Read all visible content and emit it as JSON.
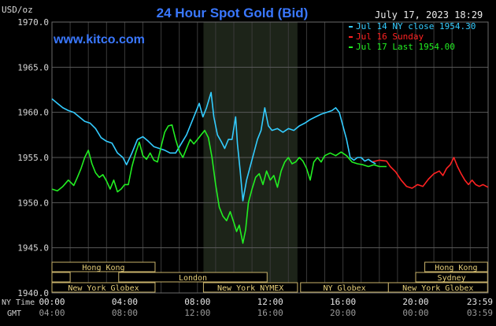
{
  "chart_data": {
    "type": "line",
    "title": "24 Hour Spot Gold (Bid)",
    "ylabel": "USD/oz",
    "date_label": "July 17, 2023 18:29",
    "watermark": "www.kitco.com",
    "ylim": [
      1940.0,
      1970.0
    ],
    "y_ticks": [
      "1970.0",
      "1965.0",
      "1960.0",
      "1955.0",
      "1950.0",
      "1945.0",
      "1940.0"
    ],
    "x_label_top": "NY Time",
    "x_label_bottom": "GMT",
    "x_ticks_ny": [
      "00:00",
      "04:00",
      "08:00",
      "12:00",
      "16:00",
      "20:00",
      "23:59"
    ],
    "x_ticks_gmt": [
      "04:00",
      "08:00",
      "12:00",
      "16:00",
      "20:00",
      "00:00",
      "03:59"
    ],
    "x_hours": [
      0,
      4,
      8,
      12,
      16,
      20,
      23.983
    ],
    "nymex_hours": [
      8.33,
      13.5
    ],
    "legend": [
      {
        "text": "Jul 14 NY close 1954.30",
        "color": "#33ccff"
      },
      {
        "text": "Jul 16 Sunday",
        "color": "#ff2222"
      },
      {
        "text": "Jul 17 Last 1954.00",
        "color": "#22ee22"
      }
    ],
    "sessions": [
      {
        "label": "Hong Kong",
        "start": 0,
        "end": 5.67,
        "row": 0
      },
      {
        "label": "Hong Kong",
        "start": 20.5,
        "end": 23.95,
        "row": 0
      },
      {
        "label": "London",
        "start": 0,
        "end": 1,
        "row": 1
      },
      {
        "label": "London",
        "start": 3.67,
        "end": 11.83,
        "row": 1
      },
      {
        "label": "Sydney",
        "start": 20,
        "end": 23.95,
        "row": 1
      },
      {
        "label": "New York Globex",
        "start": 0,
        "end": 5.67,
        "row": 2
      },
      {
        "label": "New York NYMEX",
        "start": 8.33,
        "end": 13.5,
        "row": 2
      },
      {
        "label": "NY Globex",
        "start": 13.67,
        "end": 18.5,
        "row": 2
      },
      {
        "label": "New York Globex",
        "start": 18.5,
        "end": 23.95,
        "row": 2
      }
    ],
    "series": [
      {
        "name": "Jul 14",
        "color": "#33ccff",
        "points": [
          [
            0.0,
            1961.5
          ],
          [
            0.3,
            1961.0
          ],
          [
            0.6,
            1960.5
          ],
          [
            0.9,
            1960.2
          ],
          [
            1.2,
            1960.0
          ],
          [
            1.5,
            1959.5
          ],
          [
            1.8,
            1959.0
          ],
          [
            2.1,
            1958.8
          ],
          [
            2.4,
            1958.2
          ],
          [
            2.7,
            1957.2
          ],
          [
            3.0,
            1956.8
          ],
          [
            3.3,
            1956.6
          ],
          [
            3.6,
            1955.5
          ],
          [
            3.9,
            1955.0
          ],
          [
            4.1,
            1954.2
          ],
          [
            4.4,
            1955.5
          ],
          [
            4.7,
            1957.0
          ],
          [
            5.0,
            1957.3
          ],
          [
            5.3,
            1956.8
          ],
          [
            5.6,
            1956.2
          ],
          [
            5.9,
            1956.0
          ],
          [
            6.2,
            1955.8
          ],
          [
            6.5,
            1955.5
          ],
          [
            6.8,
            1955.5
          ],
          [
            7.1,
            1956.5
          ],
          [
            7.4,
            1957.5
          ],
          [
            7.7,
            1959.0
          ],
          [
            7.9,
            1960.0
          ],
          [
            8.1,
            1961.0
          ],
          [
            8.3,
            1959.5
          ],
          [
            8.5,
            1960.5
          ],
          [
            8.75,
            1962.2
          ],
          [
            8.9,
            1959.5
          ],
          [
            9.1,
            1957.5
          ],
          [
            9.3,
            1956.8
          ],
          [
            9.5,
            1956.0
          ],
          [
            9.7,
            1957.0
          ],
          [
            9.9,
            1957.0
          ],
          [
            10.1,
            1959.5
          ],
          [
            10.2,
            1956.5
          ],
          [
            10.35,
            1953.5
          ],
          [
            10.5,
            1950.2
          ],
          [
            10.7,
            1952.5
          ],
          [
            10.9,
            1954.0
          ],
          [
            11.1,
            1955.5
          ],
          [
            11.3,
            1957.0
          ],
          [
            11.5,
            1958.0
          ],
          [
            11.7,
            1960.5
          ],
          [
            11.9,
            1958.5
          ],
          [
            12.1,
            1958.0
          ],
          [
            12.4,
            1958.2
          ],
          [
            12.7,
            1957.8
          ],
          [
            13.0,
            1958.2
          ],
          [
            13.3,
            1958.0
          ],
          [
            13.6,
            1958.5
          ],
          [
            13.9,
            1958.8
          ],
          [
            14.2,
            1959.2
          ],
          [
            14.5,
            1959.5
          ],
          [
            14.8,
            1959.8
          ],
          [
            15.1,
            1960.0
          ],
          [
            15.4,
            1960.2
          ],
          [
            15.6,
            1960.5
          ],
          [
            15.8,
            1960.0
          ],
          [
            16.0,
            1958.5
          ],
          [
            16.2,
            1957.0
          ],
          [
            16.4,
            1955.0
          ],
          [
            16.6,
            1954.7
          ],
          [
            16.8,
            1955.0
          ],
          [
            17.0,
            1955.0
          ],
          [
            17.2,
            1954.6
          ],
          [
            17.4,
            1954.8
          ],
          [
            17.6,
            1954.5
          ],
          [
            17.8,
            1954.3
          ]
        ]
      },
      {
        "name": "Jul 16",
        "color": "#ff2222",
        "points": [
          [
            17.6,
            1954.5
          ],
          [
            18.0,
            1954.7
          ],
          [
            18.4,
            1954.6
          ],
          [
            18.6,
            1954.0
          ],
          [
            18.9,
            1953.4
          ],
          [
            19.2,
            1952.5
          ],
          [
            19.5,
            1951.8
          ],
          [
            19.8,
            1951.6
          ],
          [
            20.1,
            1952.0
          ],
          [
            20.4,
            1951.8
          ],
          [
            20.7,
            1952.6
          ],
          [
            21.0,
            1953.2
          ],
          [
            21.3,
            1953.5
          ],
          [
            21.5,
            1953.0
          ],
          [
            21.7,
            1953.8
          ],
          [
            21.9,
            1954.2
          ],
          [
            22.1,
            1955.0
          ],
          [
            22.3,
            1954.0
          ],
          [
            22.5,
            1953.2
          ],
          [
            22.7,
            1952.5
          ],
          [
            22.9,
            1952.0
          ],
          [
            23.1,
            1952.5
          ],
          [
            23.3,
            1952.0
          ],
          [
            23.5,
            1951.8
          ],
          [
            23.7,
            1952.0
          ],
          [
            23.98,
            1951.7
          ]
        ]
      },
      {
        "name": "Jul 17",
        "color": "#22ee22",
        "points": [
          [
            0.0,
            1951.5
          ],
          [
            0.3,
            1951.3
          ],
          [
            0.6,
            1951.8
          ],
          [
            0.9,
            1952.5
          ],
          [
            1.2,
            1951.9
          ],
          [
            1.4,
            1952.8
          ],
          [
            1.6,
            1953.8
          ],
          [
            1.8,
            1955.0
          ],
          [
            2.0,
            1955.8
          ],
          [
            2.2,
            1954.3
          ],
          [
            2.4,
            1953.3
          ],
          [
            2.6,
            1952.8
          ],
          [
            2.8,
            1953.1
          ],
          [
            3.0,
            1952.4
          ],
          [
            3.2,
            1951.5
          ],
          [
            3.4,
            1952.5
          ],
          [
            3.6,
            1951.2
          ],
          [
            3.8,
            1951.5
          ],
          [
            4.0,
            1952.0
          ],
          [
            4.2,
            1952.0
          ],
          [
            4.4,
            1954.0
          ],
          [
            4.6,
            1955.5
          ],
          [
            4.8,
            1956.7
          ],
          [
            5.0,
            1955.2
          ],
          [
            5.2,
            1954.8
          ],
          [
            5.4,
            1955.5
          ],
          [
            5.6,
            1954.7
          ],
          [
            5.8,
            1954.5
          ],
          [
            6.0,
            1956.2
          ],
          [
            6.2,
            1957.8
          ],
          [
            6.4,
            1958.5
          ],
          [
            6.6,
            1958.6
          ],
          [
            6.8,
            1957.0
          ],
          [
            7.0,
            1955.7
          ],
          [
            7.2,
            1955.0
          ],
          [
            7.4,
            1956.0
          ],
          [
            7.6,
            1957.0
          ],
          [
            7.8,
            1956.5
          ],
          [
            8.0,
            1957.0
          ],
          [
            8.2,
            1957.5
          ],
          [
            8.4,
            1958.0
          ],
          [
            8.6,
            1957.2
          ],
          [
            8.8,
            1955.0
          ],
          [
            9.0,
            1952.0
          ],
          [
            9.2,
            1949.5
          ],
          [
            9.4,
            1948.5
          ],
          [
            9.6,
            1948.0
          ],
          [
            9.8,
            1949.0
          ],
          [
            10.0,
            1947.8
          ],
          [
            10.15,
            1946.8
          ],
          [
            10.3,
            1947.5
          ],
          [
            10.5,
            1945.5
          ],
          [
            10.65,
            1947.0
          ],
          [
            10.8,
            1950.0
          ],
          [
            11.0,
            1951.5
          ],
          [
            11.2,
            1952.8
          ],
          [
            11.4,
            1953.2
          ],
          [
            11.6,
            1952.0
          ],
          [
            11.8,
            1953.5
          ],
          [
            12.0,
            1952.5
          ],
          [
            12.2,
            1953.0
          ],
          [
            12.4,
            1951.7
          ],
          [
            12.6,
            1953.5
          ],
          [
            12.8,
            1954.5
          ],
          [
            13.0,
            1955.0
          ],
          [
            13.2,
            1954.3
          ],
          [
            13.4,
            1954.5
          ],
          [
            13.6,
            1955.0
          ],
          [
            13.8,
            1954.6
          ],
          [
            14.0,
            1953.8
          ],
          [
            14.2,
            1952.5
          ],
          [
            14.4,
            1954.5
          ],
          [
            14.6,
            1955.0
          ],
          [
            14.8,
            1954.5
          ],
          [
            15.0,
            1955.2
          ],
          [
            15.3,
            1955.5
          ],
          [
            15.6,
            1955.2
          ],
          [
            15.9,
            1955.6
          ],
          [
            16.2,
            1955.2
          ],
          [
            16.5,
            1954.5
          ],
          [
            16.8,
            1954.3
          ],
          [
            17.1,
            1954.2
          ],
          [
            17.4,
            1954.0
          ],
          [
            17.7,
            1954.2
          ],
          [
            18.0,
            1954.0
          ],
          [
            18.4,
            1954.0
          ]
        ]
      }
    ]
  }
}
